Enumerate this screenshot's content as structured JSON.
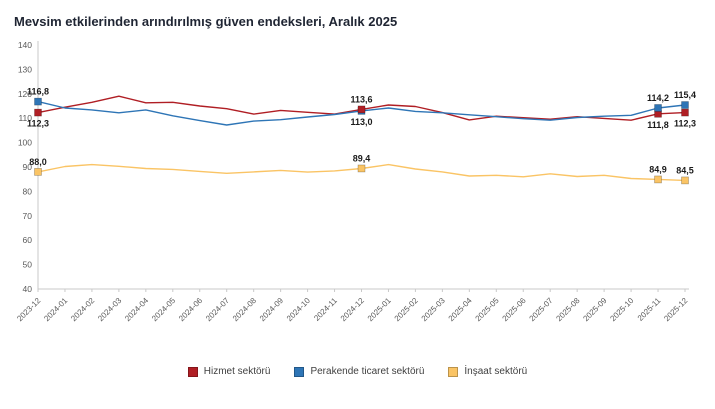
{
  "title": "Mevsim etkilerinden arındırılmış güven endeksleri, Aralık 2025",
  "legend": [
    {
      "label": "Hizmet sektörü",
      "color": "#b01e24"
    },
    {
      "label": "Perakende ticaret sektörü",
      "color": "#2e75b6"
    },
    {
      "label": "İnşaat sektörü",
      "color": "#fac465"
    }
  ],
  "chart_data": {
    "type": "line",
    "title": "Mevsim etkilerinden arındırılmış güven endeksleri, Aralık 2025",
    "xlabel": "",
    "ylabel": "",
    "ylim": [
      40,
      140
    ],
    "ytick_step": 10,
    "grid": false,
    "legend_position": "bottom",
    "categories": [
      "2023-12",
      "2024-01",
      "2024-02",
      "2024-03",
      "2024-04",
      "2024-05",
      "2024-06",
      "2024-07",
      "2024-08",
      "2024-09",
      "2024-10",
      "2024-11",
      "2024-12",
      "2025-01",
      "2025-02",
      "2025-03",
      "2025-04",
      "2025-05",
      "2025-06",
      "2025-07",
      "2025-08",
      "2025-09",
      "2025-10",
      "2025-11",
      "2025-12"
    ],
    "series": [
      {
        "name": "Hizmet sektörü",
        "color": "#b01e24",
        "values": [
          112.3,
          114.5,
          116.5,
          119.0,
          116.3,
          116.5,
          115.0,
          113.9,
          111.7,
          113.2,
          112.4,
          111.7,
          113.6,
          115.4,
          114.8,
          112.3,
          109.3,
          110.8,
          110.2,
          109.6,
          110.6,
          109.9,
          109.2,
          111.8,
          112.3
        ]
      },
      {
        "name": "Perakende ticaret sektörü",
        "color": "#2e75b6",
        "values": [
          116.8,
          114.2,
          113.4,
          112.2,
          113.4,
          111.0,
          109.0,
          107.2,
          108.8,
          109.4,
          110.5,
          111.5,
          113.0,
          114.2,
          112.8,
          112.2,
          111.4,
          110.6,
          109.8,
          109.2,
          110.3,
          110.8,
          111.2,
          114.2,
          115.4
        ]
      },
      {
        "name": "İnşaat sektörü",
        "color": "#fac465",
        "values": [
          88.0,
          90.2,
          91.0,
          90.3,
          89.4,
          89.0,
          88.2,
          87.4,
          88.0,
          88.6,
          87.9,
          88.4,
          89.4,
          91.0,
          89.2,
          88.0,
          86.3,
          86.6,
          86.0,
          87.2,
          86.1,
          86.6,
          85.3,
          84.9,
          84.5
        ]
      }
    ],
    "annotations": [
      {
        "series": 1,
        "category": "2023-12",
        "text": "116,8",
        "position": "above",
        "marker": true
      },
      {
        "series": 0,
        "category": "2023-12",
        "text": "112,3",
        "position": "below",
        "marker": true
      },
      {
        "series": 2,
        "category": "2023-12",
        "text": "88,0",
        "position": "above",
        "marker": true
      },
      {
        "series": 1,
        "category": "2024-12",
        "text": "113,0",
        "position": "below",
        "marker": true
      },
      {
        "series": 0,
        "category": "2024-12",
        "text": "113,6",
        "position": "above",
        "marker": true
      },
      {
        "series": 2,
        "category": "2024-12",
        "text": "89,4",
        "position": "above",
        "marker": true
      },
      {
        "series": 0,
        "category": "2025-11",
        "text": "111,8",
        "position": "below",
        "marker": true
      },
      {
        "series": 1,
        "category": "2025-11",
        "text": "114,2",
        "position": "above",
        "marker": true
      },
      {
        "series": 2,
        "category": "2025-11",
        "text": "84,9",
        "position": "above",
        "marker": true
      },
      {
        "series": 0,
        "category": "2025-12",
        "text": "112,3",
        "position": "below",
        "marker": true
      },
      {
        "series": 1,
        "category": "2025-12",
        "text": "115,4",
        "position": "above",
        "marker": true
      },
      {
        "series": 2,
        "category": "2025-12",
        "text": "84,5",
        "position": "above",
        "marker": true
      }
    ]
  }
}
